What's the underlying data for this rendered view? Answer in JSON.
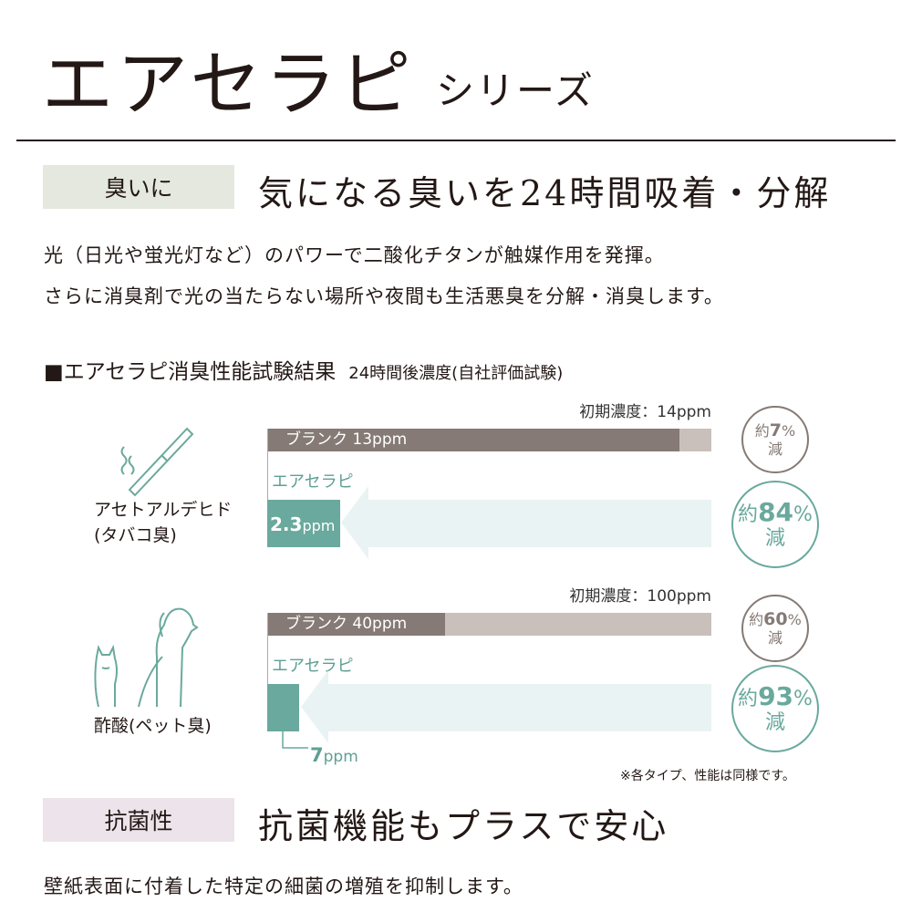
{
  "header": {
    "title": "エアセラピ",
    "subtitle": "シリーズ"
  },
  "odor": {
    "tag": "臭いに",
    "heading": "気になる臭いを24時間吸着・分解",
    "body": [
      "光（日光や蛍光灯など）のパワーで二酸化チタンが触媒作用を発揮。",
      "さらに消臭剤で光の当たらない場所や夜間も生活悪臭を分解・消臭します。"
    ]
  },
  "test": {
    "title": "■エアセラピ消臭性能試験結果",
    "subtitle": "24時間後濃度(自社評価試験)",
    "note": "※各タイプ、性能は同様です。"
  },
  "chart_data": [
    {
      "type": "bar",
      "name": "アセトアルデヒド",
      "sub": "(タバコ臭)",
      "initial_label": "初期濃度：14ppm",
      "initial": 14,
      "blank_label": "ブランク 13ppm",
      "blank": 13,
      "product_label": "エアセラピ",
      "product_value_label": "2.3",
      "product_unit": "ppm",
      "product": 2.3,
      "blank_reduction": {
        "prefix": "約",
        "value": "7",
        "unit": "%",
        "suffix": "減"
      },
      "product_reduction": {
        "prefix": "約",
        "value": "84",
        "unit": "%",
        "suffix": "減"
      },
      "icon": "cigarette-icon"
    },
    {
      "type": "bar",
      "name": "酢酸",
      "sub": "(ペット臭)",
      "initial_label": "初期濃度：100ppm",
      "initial": 100,
      "blank_label": "ブランク 40ppm",
      "blank": 40,
      "product_label": "エアセラピ",
      "product_value_label": "7",
      "product_unit": "ppm",
      "product": 7,
      "blank_reduction": {
        "prefix": "約",
        "value": "60",
        "unit": "%",
        "suffix": "減"
      },
      "product_reduction": {
        "prefix": "約",
        "value": "93",
        "unit": "%",
        "suffix": "減"
      },
      "icon": "dog-cat-icon"
    }
  ],
  "colors": {
    "blank": "#857a75",
    "blank_rest": "#c9bfbb",
    "product": "#6aa99d",
    "arrow": "#eaf3f3",
    "tag_odor": "#e4e8de",
    "tag_antibac": "#ece4ea"
  },
  "antibac": {
    "tag": "抗菌性",
    "heading": "抗菌機能もプラスで安心",
    "body": "壁紙表面に付着した特定の細菌の増殖を抑制します。"
  }
}
